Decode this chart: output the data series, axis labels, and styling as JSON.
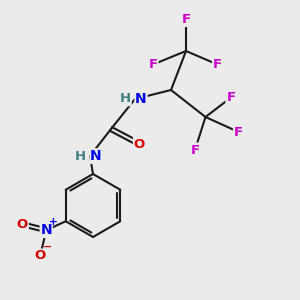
{
  "background_color": "#ebebeb",
  "bond_color": "#1a1a1a",
  "atom_colors": {
    "F": "#cc00cc",
    "N": "#0000ee",
    "O": "#dd0000",
    "H": "#3d8080",
    "C": "#1a1a1a"
  },
  "figsize": [
    3.0,
    3.0
  ],
  "dpi": 100
}
